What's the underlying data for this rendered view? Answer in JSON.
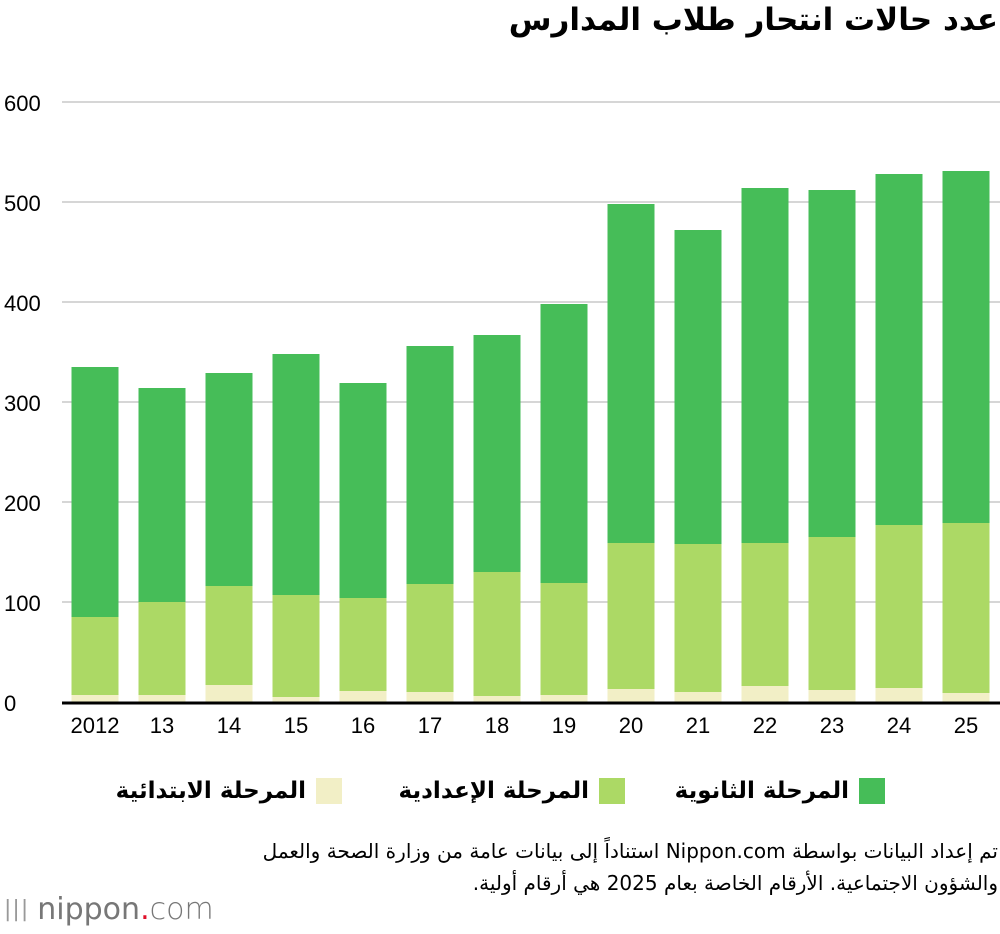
{
  "chart_data": {
    "type": "bar",
    "stacked": true,
    "title": "عدد حالات انتحار طلاب المدارس",
    "categories": [
      "2012",
      "13",
      "14",
      "15",
      "16",
      "17",
      "18",
      "19",
      "20",
      "21",
      "22",
      "23",
      "24",
      "25"
    ],
    "series": [
      {
        "name": "المرحلة الابتدائية",
        "color": "#f2efc6",
        "values": [
          7,
          7,
          17,
          5,
          11,
          10,
          6,
          7,
          13,
          10,
          16,
          12,
          14,
          9
        ]
      },
      {
        "name": "المرحلة الإعدادية",
        "color": "#acd965",
        "values": [
          78,
          93,
          99,
          102,
          93,
          108,
          124,
          112,
          146,
          148,
          143,
          153,
          163,
          170
        ]
      },
      {
        "name": "المرحلة الثانوية",
        "color": "#46bd58",
        "values": [
          250,
          214,
          213,
          241,
          215,
          238,
          237,
          279,
          339,
          314,
          355,
          347,
          351,
          352
        ]
      }
    ],
    "ylim": [
      0,
      600
    ],
    "yticks": [
      "0",
      "100",
      "200",
      "300",
      "400",
      "500",
      "600"
    ],
    "grid": true,
    "legend_position": "bottom"
  },
  "note": "تم إعداد البيانات بواسطة Nippon.com استناداً إلى بيانات عامة من وزارة الصحة والعمل والشؤون الاجتماعية. الأرقام الخاصة بعام 2025 هي أرقام أولية.",
  "logo": {
    "name": "nippon",
    "dot": ".",
    "tld": "com"
  }
}
